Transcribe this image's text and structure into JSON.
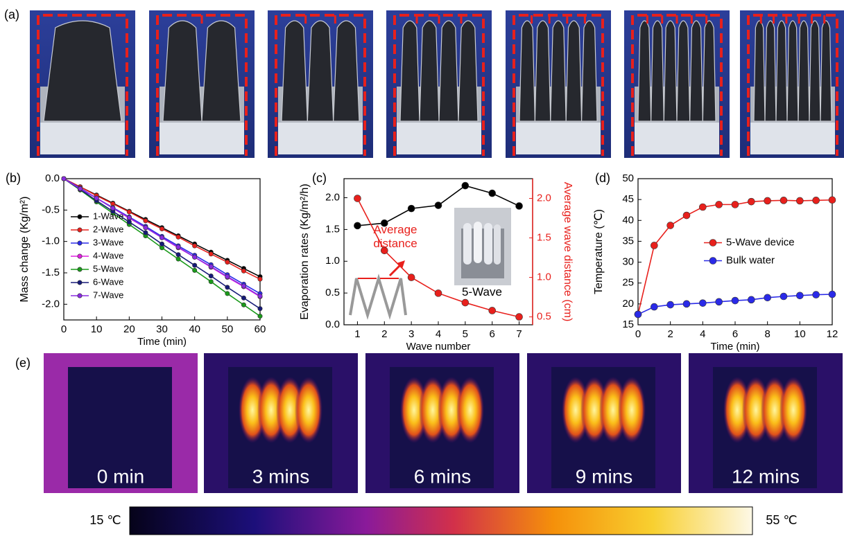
{
  "panel_labels": [
    "(a)",
    "(e)"
  ],
  "chart_data": [
    {
      "type": "line",
      "panel_label": "(b)",
      "xlabel": "Time (min)",
      "ylabel": "Mass change (Kg/m²)",
      "x": [
        0,
        5,
        10,
        15,
        20,
        25,
        30,
        35,
        40,
        45,
        50,
        55,
        60
      ],
      "xlim": [
        0,
        60
      ],
      "xticks": [
        0,
        10,
        20,
        30,
        40,
        50,
        60
      ],
      "ylim": [
        -2.25,
        0
      ],
      "yticks": [
        {
          "value": 0,
          "label": "0.0"
        },
        -0.5,
        {
          "value": -1,
          "label": "-1.0"
        },
        -1.5,
        {
          "value": -2,
          "label": "-2.0"
        }
      ],
      "legend": "center left",
      "series": [
        {
          "name": "1-Wave",
          "color": "#000000",
          "values": [
            0,
            -0.13,
            -0.26,
            -0.39,
            -0.52,
            -0.65,
            -0.78,
            -0.91,
            -1.04,
            -1.17,
            -1.3,
            -1.43,
            -1.56
          ]
        },
        {
          "name": "2-Wave",
          "color": "#e8201c",
          "values": [
            0,
            -0.13,
            -0.27,
            -0.4,
            -0.53,
            -0.67,
            -0.8,
            -0.93,
            -1.07,
            -1.2,
            -1.33,
            -1.47,
            -1.6
          ]
        },
        {
          "name": "3-Wave",
          "color": "#2a2ae8",
          "values": [
            0,
            -0.15,
            -0.31,
            -0.46,
            -0.61,
            -0.76,
            -0.92,
            -1.07,
            -1.22,
            -1.37,
            -1.53,
            -1.68,
            -1.83
          ]
        },
        {
          "name": "4-Wave",
          "color": "#e020e0",
          "values": [
            0,
            -0.16,
            -0.31,
            -0.47,
            -0.63,
            -0.78,
            -0.94,
            -1.1,
            -1.25,
            -1.41,
            -1.57,
            -1.72,
            -1.88
          ]
        },
        {
          "name": "5-Wave",
          "color": "#1a9a1a",
          "values": [
            0,
            -0.18,
            -0.37,
            -0.55,
            -0.73,
            -0.91,
            -1.1,
            -1.28,
            -1.46,
            -1.64,
            -1.83,
            -2.01,
            -2.19
          ]
        },
        {
          "name": "6-Wave",
          "color": "#161a78",
          "values": [
            0,
            -0.17,
            -0.35,
            -0.52,
            -0.69,
            -0.86,
            -1.04,
            -1.21,
            -1.38,
            -1.55,
            -1.73,
            -1.9,
            -2.07
          ]
        },
        {
          "name": "7-Wave",
          "color": "#8a2be2",
          "values": [
            0,
            -0.16,
            -0.31,
            -0.47,
            -0.62,
            -0.78,
            -0.94,
            -1.09,
            -1.25,
            -1.4,
            -1.56,
            -1.71,
            -1.87
          ]
        }
      ]
    },
    {
      "type": "line",
      "panel_label": "(c)",
      "xlabel": "Wave number",
      "ylabel": "Evaporation rates (Kg/m²/h)",
      "y2label": "Average wave distance (cm)",
      "x": [
        1,
        2,
        3,
        4,
        5,
        6,
        7
      ],
      "xlim": [
        0.5,
        7.5
      ],
      "xticks": [
        1,
        2,
        3,
        4,
        5,
        6,
        7
      ],
      "ylim": [
        0,
        2.3
      ],
      "yticks": [
        {
          "value": 0,
          "label": "0.0"
        },
        0.5,
        {
          "value": 1,
          "label": "1.0"
        },
        1.5,
        {
          "value": 2,
          "label": "2.0"
        }
      ],
      "y2lim": [
        0.4,
        2.25
      ],
      "y2ticks": [
        0.5,
        {
          "value": 1,
          "label": "1.0"
        },
        1.5,
        {
          "value": 2,
          "label": "2.0"
        }
      ],
      "annotations": [
        "Average distance",
        "5-Wave"
      ],
      "series": [
        {
          "color": "#000000",
          "values": [
            1.56,
            1.6,
            1.83,
            1.88,
            2.19,
            2.07,
            1.87
          ]
        },
        {
          "color": "#e8201c",
          "axis": "y2",
          "values": [
            2.0,
            1.34,
            1.0,
            0.8,
            0.68,
            0.58,
            0.5
          ]
        }
      ]
    },
    {
      "type": "line",
      "panel_label": "(d)",
      "xlabel": "Time (min)",
      "ylabel": "Temperature (℃)",
      "x": [
        0,
        1,
        2,
        3,
        4,
        5,
        6,
        7,
        8,
        9,
        10,
        11,
        12
      ],
      "xlim": [
        0,
        12
      ],
      "xticks": [
        0,
        2,
        4,
        6,
        8,
        10,
        12
      ],
      "ylim": [
        15,
        50
      ],
      "yticks": [
        15,
        20,
        25,
        30,
        35,
        40,
        45,
        50
      ],
      "legend": "center right",
      "series": [
        {
          "name": "5-Wave device",
          "color": "#e8201c",
          "values": [
            17.5,
            34,
            38.8,
            41.2,
            43.2,
            43.8,
            43.8,
            44.5,
            44.7,
            44.8,
            44.7,
            44.8,
            44.9
          ]
        },
        {
          "name": "Bulk water",
          "color": "#2a2ae8",
          "values": [
            17.5,
            19.3,
            19.8,
            20,
            20.2,
            20.5,
            20.8,
            21,
            21.5,
            21.8,
            22,
            22.2,
            22.3
          ]
        }
      ]
    }
  ],
  "thermal_images": {
    "captions": [
      "0 min",
      "3 mins",
      "6 mins",
      "9 mins",
      "12 mins"
    ]
  },
  "colorbar": {
    "min_label": "15 ℃",
    "max_label": "55 ℃"
  }
}
